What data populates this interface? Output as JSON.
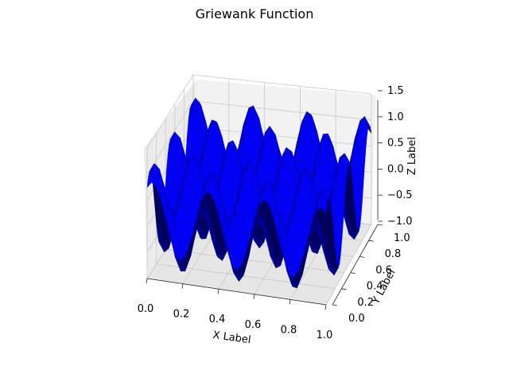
{
  "chart_data": {
    "type": "surface3d",
    "title": "Griewank Function",
    "xlabel": "X Label",
    "ylabel": "Y Label",
    "zlabel": "Z Label",
    "xlim": [
      0,
      1
    ],
    "ylim": [
      0,
      1
    ],
    "zlim": [
      -1,
      1.5
    ],
    "xticks": [
      "0.0",
      "0.2",
      "0.4",
      "0.6",
      "0.8",
      "1.0"
    ],
    "yticks": [
      "0.0",
      "0.2",
      "0.4",
      "0.6",
      "0.8",
      "1.0"
    ],
    "zticks": [
      "−1.0",
      "−0.5",
      "0.0",
      "0.5",
      "1.0",
      "1.5"
    ],
    "surface_color": "#0000ff",
    "edge_color": "#000080",
    "grid": true,
    "series": [
      {
        "grid_x_range": [
          0,
          1
        ],
        "grid_y_range": [
          0,
          1
        ],
        "grid_points": 40,
        "z_range": [
          -1,
          1.5
        ]
      }
    ]
  }
}
